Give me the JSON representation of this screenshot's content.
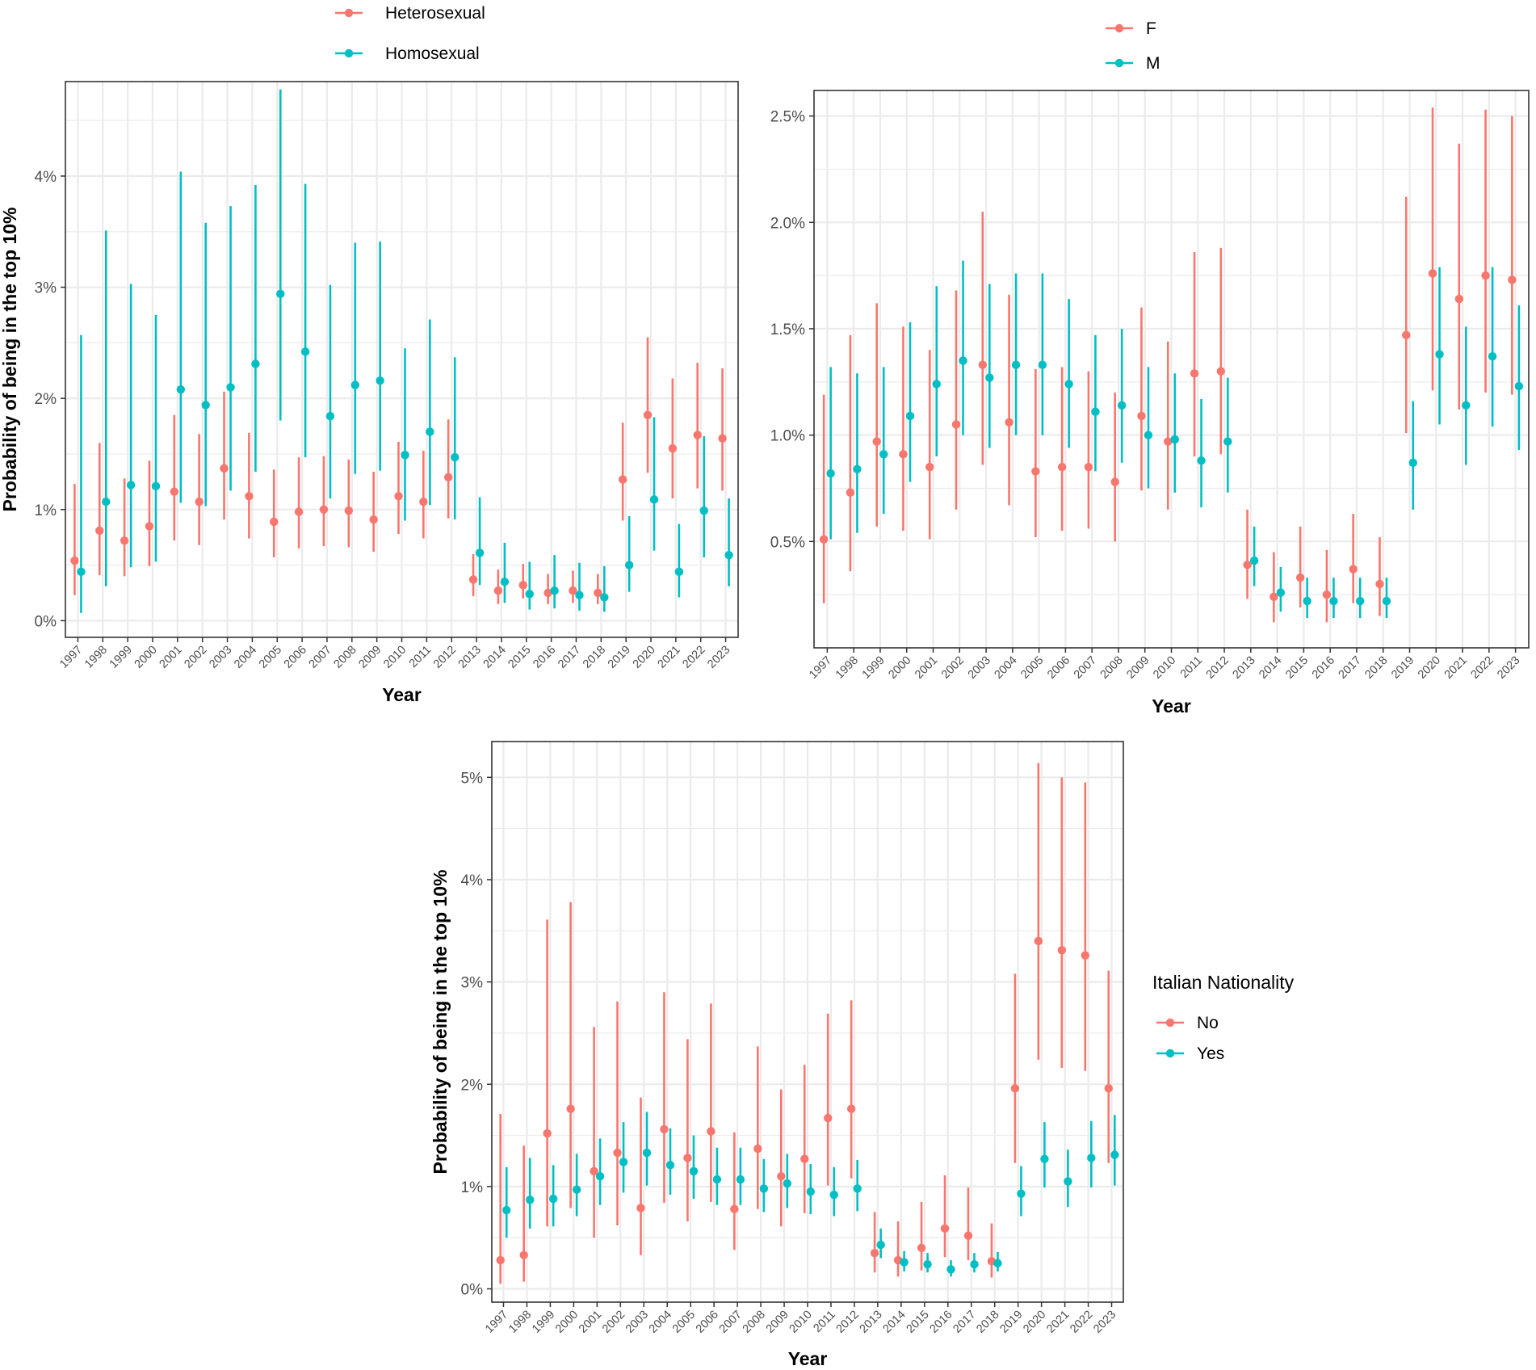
{
  "colors": {
    "series_a": "#F8766D",
    "series_b": "#00BFC4",
    "grid": "#EBEBEB",
    "panel_border": "#333333"
  },
  "chart_data": [
    {
      "type": "scatter",
      "variant": "pointrange",
      "title": "",
      "xlabel": "Year",
      "ylabel": "Probability of being in the top 10%",
      "legend": {
        "title": "",
        "position": "top",
        "entries": [
          "Heterosexual",
          "Homosexual"
        ]
      },
      "ylim": [
        -0.0015,
        0.0485
      ],
      "y_ticks": [
        0,
        0.01,
        0.02,
        0.03,
        0.04
      ],
      "y_tick_labels": [
        "0%",
        "1%",
        "2%",
        "3%",
        "4%"
      ],
      "categories": [
        "1997",
        "1998",
        "1999",
        "2000",
        "2001",
        "2002",
        "2003",
        "2004",
        "2005",
        "2006",
        "2007",
        "2008",
        "2009",
        "2010",
        "2011",
        "2012",
        "2013",
        "2014",
        "2015",
        "2016",
        "2017",
        "2018",
        "2019",
        "2020",
        "2021",
        "2022",
        "2023"
      ],
      "series": [
        {
          "name": "Heterosexual",
          "values": [
            0.0054,
            0.0081,
            0.0072,
            0.0085,
            0.0116,
            0.0107,
            0.0137,
            0.0112,
            0.0089,
            0.0098,
            0.01,
            0.0099,
            0.0091,
            0.0112,
            0.0107,
            0.0129,
            0.0037,
            0.0027,
            0.0032,
            0.0025,
            0.0027,
            0.0025,
            0.0127,
            0.0185,
            0.0155,
            0.0167,
            0.0164
          ],
          "lower": [
            0.0023,
            0.0041,
            0.004,
            0.0049,
            0.0072,
            0.0068,
            0.0091,
            0.0074,
            0.0057,
            0.0065,
            0.0067,
            0.0066,
            0.0062,
            0.0078,
            0.0074,
            0.0092,
            0.0022,
            0.0015,
            0.002,
            0.0015,
            0.0016,
            0.0015,
            0.009,
            0.0133,
            0.011,
            0.0119,
            0.0117
          ],
          "upper": [
            0.0123,
            0.016,
            0.0128,
            0.0144,
            0.0185,
            0.0168,
            0.0206,
            0.0169,
            0.0136,
            0.0147,
            0.0148,
            0.0145,
            0.0134,
            0.0161,
            0.0153,
            0.0181,
            0.006,
            0.0046,
            0.0051,
            0.0042,
            0.0045,
            0.0042,
            0.0178,
            0.0255,
            0.0218,
            0.0232,
            0.0227
          ]
        },
        {
          "name": "Homosexual",
          "values": [
            0.0044,
            0.0107,
            0.0122,
            0.0121,
            0.0208,
            0.0194,
            0.021,
            0.0231,
            0.0294,
            0.0242,
            0.0184,
            0.0212,
            0.0216,
            0.0149,
            0.017,
            0.0147,
            0.0061,
            0.0035,
            0.0024,
            0.0027,
            0.0023,
            0.0021,
            0.005,
            0.0109,
            0.0044,
            0.0099,
            0.0059
          ],
          "lower": [
            0.0007,
            0.0031,
            0.0048,
            0.0053,
            0.0106,
            0.0103,
            0.0117,
            0.0134,
            0.018,
            0.0147,
            0.011,
            0.0132,
            0.0135,
            0.009,
            0.0104,
            0.0091,
            0.0032,
            0.0016,
            0.001,
            0.0011,
            0.0009,
            0.0008,
            0.0026,
            0.0063,
            0.0021,
            0.0057,
            0.0031
          ],
          "upper": [
            0.0257,
            0.0351,
            0.0303,
            0.0275,
            0.0404,
            0.0358,
            0.0373,
            0.0392,
            0.0478,
            0.0393,
            0.0302,
            0.034,
            0.0341,
            0.0245,
            0.0271,
            0.0237,
            0.0111,
            0.007,
            0.0053,
            0.0059,
            0.0052,
            0.0049,
            0.0094,
            0.0183,
            0.0087,
            0.0166,
            0.011
          ]
        }
      ]
    },
    {
      "type": "scatter",
      "variant": "pointrange",
      "title": "",
      "xlabel": "Year",
      "ylabel": "",
      "legend": {
        "title": "",
        "position": "top",
        "entries": [
          "F",
          "M"
        ]
      },
      "ylim": [
        0.0,
        0.0262
      ],
      "y_ticks": [
        0.005,
        0.01,
        0.015,
        0.02,
        0.025
      ],
      "y_tick_labels": [
        "0.5%",
        "1.0%",
        "1.5%",
        "2.0%",
        "2.5%"
      ],
      "categories": [
        "1997",
        "1998",
        "1999",
        "2000",
        "2001",
        "2002",
        "2003",
        "2004",
        "2005",
        "2006",
        "2007",
        "2008",
        "2009",
        "2010",
        "2011",
        "2012",
        "2013",
        "2014",
        "2015",
        "2016",
        "2017",
        "2018",
        "2019",
        "2020",
        "2021",
        "2022",
        "2023"
      ],
      "series": [
        {
          "name": "F",
          "values": [
            0.0051,
            0.0073,
            0.0097,
            0.0091,
            0.0085,
            0.0105,
            0.0133,
            0.0106,
            0.0083,
            0.0085,
            0.0085,
            0.0078,
            0.0109,
            0.0097,
            0.0129,
            0.013,
            0.0039,
            0.0024,
            0.0033,
            0.0025,
            0.0037,
            0.003,
            0.0147,
            0.0176,
            0.0164,
            0.0175,
            0.0173
          ],
          "lower": [
            0.0021,
            0.0036,
            0.0057,
            0.0055,
            0.0051,
            0.0065,
            0.0086,
            0.0067,
            0.0052,
            0.0055,
            0.0056,
            0.005,
            0.0074,
            0.0065,
            0.009,
            0.0091,
            0.0023,
            0.0012,
            0.0019,
            0.0012,
            0.0021,
            0.0015,
            0.0101,
            0.0121,
            0.0112,
            0.012,
            0.0119
          ],
          "upper": [
            0.0119,
            0.0147,
            0.0162,
            0.0151,
            0.014,
            0.0168,
            0.0205,
            0.0166,
            0.0131,
            0.0132,
            0.013,
            0.012,
            0.016,
            0.0144,
            0.0186,
            0.0188,
            0.0065,
            0.0045,
            0.0057,
            0.0046,
            0.0063,
            0.0052,
            0.0212,
            0.0254,
            0.0237,
            0.0253,
            0.025
          ]
        },
        {
          "name": "M",
          "values": [
            0.0082,
            0.0084,
            0.0091,
            0.0109,
            0.0124,
            0.0135,
            0.0127,
            0.0133,
            0.0133,
            0.0124,
            0.0111,
            0.0114,
            0.01,
            0.0098,
            0.0088,
            0.0097,
            0.0041,
            0.0026,
            0.0022,
            0.0022,
            0.0022,
            0.0022,
            0.0087,
            0.0138,
            0.0114,
            0.0137,
            0.0123
          ],
          "lower": [
            0.0051,
            0.0054,
            0.0063,
            0.0078,
            0.009,
            0.01,
            0.0094,
            0.01,
            0.01,
            0.0094,
            0.0083,
            0.0087,
            0.0075,
            0.0073,
            0.0066,
            0.0073,
            0.0029,
            0.0017,
            0.0014,
            0.0014,
            0.0014,
            0.0014,
            0.0065,
            0.0105,
            0.0086,
            0.0104,
            0.0093
          ],
          "upper": [
            0.0132,
            0.0129,
            0.0132,
            0.0153,
            0.017,
            0.0182,
            0.0171,
            0.0176,
            0.0176,
            0.0164,
            0.0147,
            0.015,
            0.0132,
            0.0129,
            0.0117,
            0.0127,
            0.0057,
            0.0038,
            0.0033,
            0.0033,
            0.0033,
            0.0033,
            0.0116,
            0.0179,
            0.0151,
            0.0179,
            0.0161
          ]
        }
      ]
    },
    {
      "type": "scatter",
      "variant": "pointrange",
      "title": "",
      "xlabel": "Year",
      "ylabel": "Probability of being in the top 10%",
      "legend": {
        "title": "Italian Nationality",
        "position": "right",
        "entries": [
          "No",
          "Yes"
        ]
      },
      "ylim": [
        -0.0013,
        0.0535
      ],
      "y_ticks": [
        0,
        0.01,
        0.02,
        0.03,
        0.04,
        0.05
      ],
      "y_tick_labels": [
        "0%",
        "1%",
        "2%",
        "3%",
        "4%",
        "5%"
      ],
      "categories": [
        "1997",
        "1998",
        "1999",
        "2000",
        "2001",
        "2002",
        "2003",
        "2004",
        "2005",
        "2006",
        "2007",
        "2008",
        "2009",
        "2010",
        "2011",
        "2012",
        "2013",
        "2014",
        "2015",
        "2016",
        "2017",
        "2018",
        "2019",
        "2020",
        "2021",
        "2022",
        "2023"
      ],
      "series": [
        {
          "name": "No",
          "values": [
            0.0028,
            0.0033,
            0.0152,
            0.0176,
            0.0115,
            0.0133,
            0.0079,
            0.0156,
            0.0128,
            0.0154,
            0.0078,
            0.0137,
            0.011,
            0.0127,
            0.0167,
            0.0176,
            0.0035,
            0.0028,
            0.004,
            0.0059,
            0.0052,
            0.0027,
            0.0196,
            0.034,
            0.0331,
            0.0326,
            0.0196
          ],
          "lower": [
            0.0005,
            0.0007,
            0.0061,
            0.0079,
            0.005,
            0.0062,
            0.0033,
            0.0084,
            0.0066,
            0.0085,
            0.0038,
            0.0078,
            0.0061,
            0.0074,
            0.0101,
            0.0108,
            0.0016,
            0.0012,
            0.0018,
            0.0031,
            0.0028,
            0.0011,
            0.0123,
            0.0224,
            0.0216,
            0.0213,
            0.0123
          ],
          "upper": [
            0.0171,
            0.014,
            0.0361,
            0.0378,
            0.0256,
            0.0281,
            0.0187,
            0.029,
            0.0244,
            0.0279,
            0.0153,
            0.0237,
            0.0195,
            0.0219,
            0.0269,
            0.0282,
            0.0075,
            0.0066,
            0.0085,
            0.0111,
            0.0099,
            0.0064,
            0.0308,
            0.0514,
            0.05,
            0.0495,
            0.0311
          ]
        },
        {
          "name": "Yes",
          "values": [
            0.0077,
            0.0087,
            0.0088,
            0.0097,
            0.011,
            0.0124,
            0.0133,
            0.0121,
            0.0115,
            0.0107,
            0.0107,
            0.0098,
            0.0103,
            0.0095,
            0.0092,
            0.0098,
            0.0043,
            0.0026,
            0.0024,
            0.0019,
            0.0024,
            0.0025,
            0.0093,
            0.0127,
            0.0105,
            0.0128,
            0.0131
          ],
          "lower": [
            0.005,
            0.0059,
            0.0061,
            0.0071,
            0.0082,
            0.0094,
            0.0101,
            0.0092,
            0.0088,
            0.0082,
            0.0082,
            0.0075,
            0.0079,
            0.0073,
            0.0071,
            0.0076,
            0.003,
            0.0017,
            0.0016,
            0.0012,
            0.0016,
            0.0017,
            0.0071,
            0.0099,
            0.008,
            0.0099,
            0.0101
          ],
          "upper": [
            0.0119,
            0.0128,
            0.0121,
            0.0132,
            0.0147,
            0.0163,
            0.0173,
            0.0157,
            0.015,
            0.0138,
            0.0138,
            0.0127,
            0.0132,
            0.0122,
            0.0119,
            0.0126,
            0.0059,
            0.0037,
            0.0035,
            0.0028,
            0.0035,
            0.0036,
            0.012,
            0.0163,
            0.0136,
            0.0164,
            0.017
          ]
        }
      ]
    }
  ]
}
